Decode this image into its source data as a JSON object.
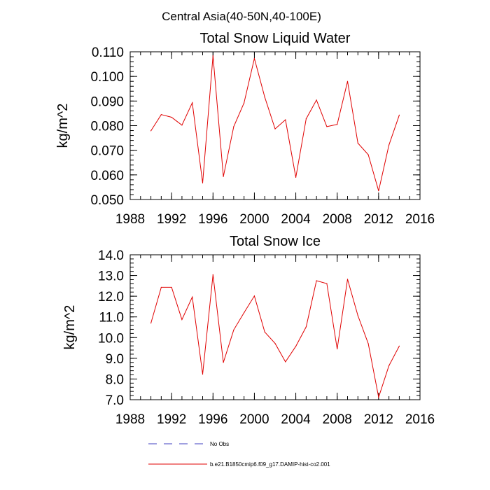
{
  "figure": {
    "title": "Central Asia(40-50N,40-100E)"
  },
  "legend": {
    "entries": [
      {
        "label": "No Obs",
        "color": "#4040c0",
        "dashed": true
      },
      {
        "label": "b.e21.B1850cmip6.f09_g17.DAMIP-hist-co2.001",
        "color": "#e00000",
        "dashed": false
      }
    ]
  },
  "chart_data": [
    {
      "type": "line",
      "title": "Total Snow Liquid Water",
      "ylabel": "kg/m^2",
      "xlabel": "",
      "xlim": [
        1988,
        2016
      ],
      "ylim": [
        0.05,
        0.11
      ],
      "xticks": [
        1988,
        1992,
        1996,
        2000,
        2004,
        2008,
        2012,
        2016
      ],
      "xtick_labels": [
        "1988",
        "1992",
        "1996",
        "2000",
        "2004",
        "2008",
        "2012",
        "2016"
      ],
      "yticks": [
        0.05,
        0.06,
        0.07,
        0.08,
        0.09,
        0.1,
        0.11
      ],
      "ytick_labels": [
        "0.050",
        "0.060",
        "0.070",
        "0.080",
        "0.090",
        "0.100",
        "0.110"
      ],
      "grid": false,
      "x": [
        1990,
        1991,
        1992,
        1993,
        1994,
        1995,
        1996,
        1997,
        1998,
        1999,
        2000,
        2001,
        2002,
        2003,
        2004,
        2005,
        2006,
        2007,
        2008,
        2009,
        2010,
        2011,
        2012,
        2013,
        2014
      ],
      "series": [
        {
          "color": "#e00000",
          "values": [
            0.0779,
            0.0845,
            0.0834,
            0.0802,
            0.0893,
            0.0567,
            0.1084,
            0.0593,
            0.0796,
            0.0892,
            0.1073,
            0.0916,
            0.0787,
            0.0824,
            0.059,
            0.0828,
            0.0904,
            0.0796,
            0.0805,
            0.098,
            0.0729,
            0.0682,
            0.0535,
            0.0721,
            0.0843
          ]
        }
      ]
    },
    {
      "type": "line",
      "title": "Total Snow Ice",
      "ylabel": "kg/m^2",
      "xlabel": "",
      "xlim": [
        1988,
        2016
      ],
      "ylim": [
        7.0,
        14.0
      ],
      "xticks": [
        1988,
        1992,
        1996,
        2000,
        2004,
        2008,
        2012,
        2016
      ],
      "xtick_labels": [
        "1988",
        "1992",
        "1996",
        "2000",
        "2004",
        "2008",
        "2012",
        "2016"
      ],
      "yticks": [
        7.0,
        8.0,
        9.0,
        10.0,
        11.0,
        12.0,
        13.0,
        14.0
      ],
      "ytick_labels": [
        "7.0",
        "8.0",
        "9.0",
        "10.0",
        "11.0",
        "12.0",
        "13.0",
        "14.0"
      ],
      "grid": false,
      "x": [
        1990,
        1991,
        1992,
        1993,
        1994,
        1995,
        1996,
        1997,
        1998,
        1999,
        2000,
        2001,
        2002,
        2003,
        2004,
        2005,
        2006,
        2007,
        2008,
        2009,
        2010,
        2011,
        2012,
        2013,
        2014
      ],
      "series": [
        {
          "color": "#e00000",
          "values": [
            10.7,
            12.43,
            12.43,
            10.87,
            11.96,
            8.23,
            13.04,
            8.8,
            10.37,
            11.2,
            12.01,
            10.27,
            9.72,
            8.83,
            9.58,
            10.52,
            12.75,
            12.61,
            9.45,
            12.82,
            11.06,
            9.71,
            7.12,
            8.64,
            9.59
          ]
        }
      ]
    }
  ]
}
